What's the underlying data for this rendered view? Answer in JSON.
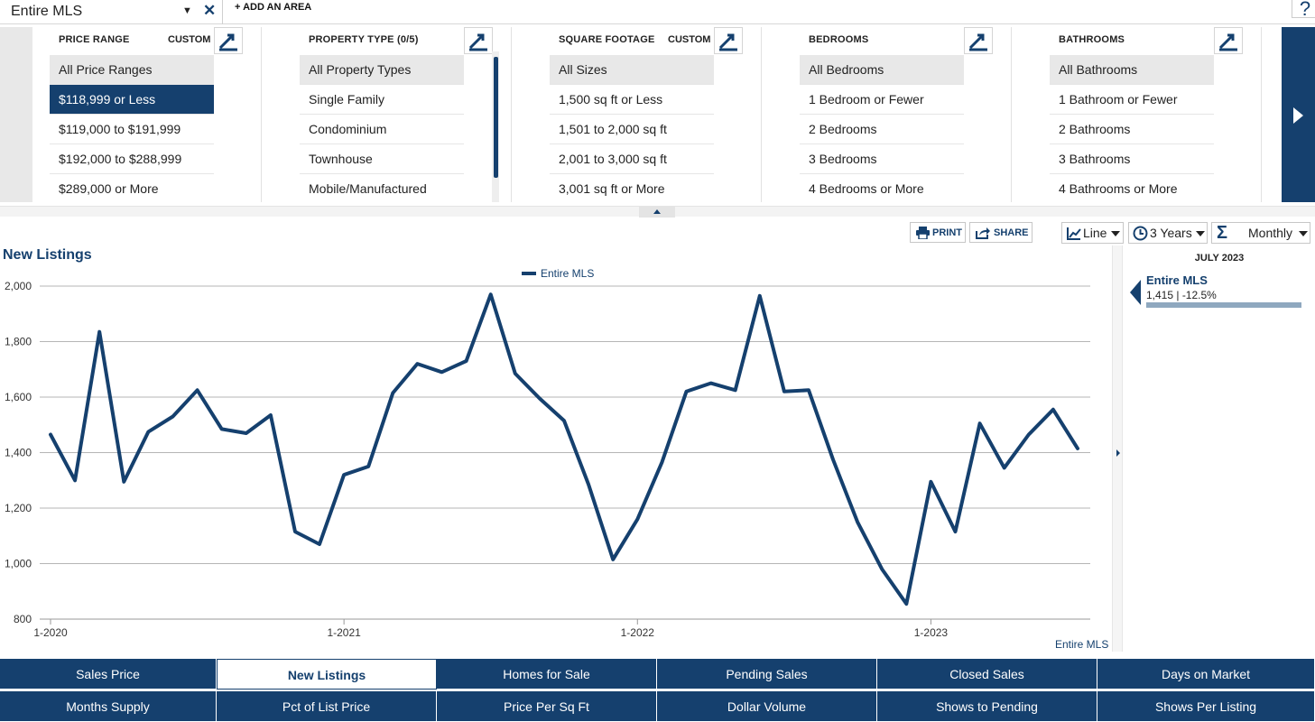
{
  "topbar": {
    "area": "Entire MLS",
    "add_area": "+ ADD AN AREA",
    "help": "?"
  },
  "filters": {
    "price": {
      "header": "PRICE RANGE",
      "custom": "CUSTOM",
      "options": [
        "All Price Ranges",
        "$118,999 or Less",
        "$119,000 to $191,999",
        "$192,000 to $288,999",
        "$289,000 or More"
      ],
      "selected": 1
    },
    "property": {
      "header": "PROPERTY TYPE (0/5)",
      "options": [
        "All Property Types",
        "Single Family",
        "Condominium",
        "Townhouse",
        "Mobile/Manufactured"
      ]
    },
    "sqft": {
      "header": "SQUARE FOOTAGE",
      "custom": "CUSTOM",
      "options": [
        "All Sizes",
        "1,500 sq ft or Less",
        "1,501 to 2,000 sq ft",
        "2,001 to 3,000 sq ft",
        "3,001 sq ft or More"
      ]
    },
    "bedrooms": {
      "header": "BEDROOMS",
      "options": [
        "All Bedrooms",
        "1 Bedroom or Fewer",
        "2 Bedrooms",
        "3 Bedrooms",
        "4 Bedrooms or More"
      ]
    },
    "bathrooms": {
      "header": "BATHROOMS",
      "options": [
        "All Bathrooms",
        "1 Bathroom or Fewer",
        "2 Bathrooms",
        "3 Bathrooms",
        "4 Bathrooms or More"
      ]
    }
  },
  "toolbar": {
    "print": "PRINT",
    "share": "SHARE",
    "chart_type": "Line",
    "period": "3 Years",
    "interval": "Monthly"
  },
  "side_panel": {
    "date": "JULY 2023",
    "series": "Entire MLS",
    "value": "1,415 | -12.5%"
  },
  "chart_source": "Entire MLS",
  "tabs": [
    [
      "Sales Price",
      "New Listings",
      "Homes for Sale",
      "Pending Sales",
      "Closed Sales",
      "Days on Market"
    ],
    [
      "Months Supply",
      "Pct of List Price",
      "Price Per Sq Ft",
      "Dollar Volume",
      "Shows to Pending",
      "Shows Per Listing"
    ]
  ],
  "active_tab": "New Listings",
  "chart_data": {
    "type": "line",
    "title": "New Listings",
    "x": [
      "1-2020",
      "2-2020",
      "3-2020",
      "4-2020",
      "5-2020",
      "6-2020",
      "7-2020",
      "8-2020",
      "9-2020",
      "10-2020",
      "11-2020",
      "12-2020",
      "1-2021",
      "2-2021",
      "3-2021",
      "4-2021",
      "5-2021",
      "6-2021",
      "7-2021",
      "8-2021",
      "9-2021",
      "10-2021",
      "11-2021",
      "12-2021",
      "1-2022",
      "2-2022",
      "3-2022",
      "4-2022",
      "5-2022",
      "6-2022",
      "7-2022",
      "8-2022",
      "9-2022",
      "10-2022",
      "11-2022",
      "12-2022",
      "1-2023",
      "2-2023",
      "3-2023",
      "4-2023",
      "5-2023",
      "6-2023",
      "7-2023"
    ],
    "x_ticks": [
      "1-2020",
      "1-2021",
      "1-2022",
      "1-2023"
    ],
    "series": [
      {
        "name": "Entire MLS",
        "color": "#15406e",
        "values": [
          1465,
          1300,
          1835,
          1295,
          1475,
          1530,
          1625,
          1485,
          1470,
          1535,
          1115,
          1070,
          1320,
          1350,
          1615,
          1720,
          1690,
          1730,
          1970,
          1685,
          1595,
          1515,
          1285,
          1015,
          1160,
          1365,
          1620,
          1650,
          1625,
          1965,
          1620,
          1625,
          1375,
          1150,
          980,
          855,
          1295,
          1115,
          1505,
          1345,
          1465,
          1555,
          1415
        ]
      }
    ],
    "y_ticks": [
      "800",
      "1,000",
      "1,200",
      "1,400",
      "1,600",
      "1,800",
      "2,000"
    ],
    "ylim": [
      800,
      2000
    ],
    "grid": true,
    "legend": "top-center"
  }
}
